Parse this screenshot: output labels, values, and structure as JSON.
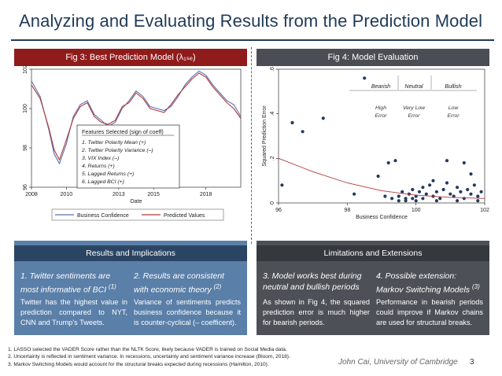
{
  "slide": {
    "title": "Analyzing and Evaluating Results from the Prediction Model",
    "author": "John Cai, University of Cambridge",
    "page_number": "3"
  },
  "fig3": {
    "title": "Fig 3: Best Prediction Model (λ₁ₛₑ)",
    "features_title": "Features Selected (sign of coeff)",
    "features": [
      "1. Twitter Polarity Mean (+)",
      "2. Twitter Polarity Variance (–)",
      "3. VIX Index (–)",
      "4. Returns (+)",
      "5. Lagged Returns (+)",
      "6. Lagged BCI (+)"
    ],
    "legend": [
      "Business Confidence",
      "Predicted Values"
    ]
  },
  "fig4": {
    "title": "Fig 4: Model Evaluation",
    "regimes": [
      {
        "name": "Bearish",
        "note": "High Error"
      },
      {
        "name": "Neutral",
        "note": "Very Low Error"
      },
      {
        "name": "Bullish",
        "note": "Low Error"
      }
    ]
  },
  "results": {
    "header": "Results and Implications",
    "items": [
      {
        "head": "1. Twitter sentiments are most informative of BCI",
        "ref": "(1)",
        "body": "Twitter has the highest value in prediction compared to NYT, CNN and Trump's Tweets."
      },
      {
        "head": "2. Results are consistent with economic theory",
        "ref": "(2)",
        "body": "Variance of sentiments predicts business confidence because it is counter-cyclical (– coefficent)."
      }
    ]
  },
  "limitations": {
    "header": "Limitations and Extensions",
    "items": [
      {
        "head": "3. Model works best during neutral and bullish periods",
        "ref": "",
        "body": "As shown in Fig 4, the squared prediction error is much higher for bearish periods."
      },
      {
        "head": "4. Possible extension: Markov Switching Models",
        "ref": "(3)",
        "body": "Performance in bearish periods could improve if Markov chains are used for structural breaks."
      }
    ]
  },
  "footnotes": [
    "1.  LASSO selected the VADER Score rather than the NLTK Score, likely because VADER is trained on Social Media data.",
    "2.  Uncertainty is reflected in sentiment variance. In recessions, uncertainty and sentiment variance increase (Bloom, 2018).",
    "3.  Markov Switching Models would account for the structural breaks expected during recessions (Hamilton, 2010)."
  ],
  "colors": {
    "business_confidence": "#5a6fb0",
    "predicted_values": "#b03a3a",
    "scatter_points": "#233a5e",
    "fit_line": "#b03a3a"
  },
  "chart_data": [
    {
      "type": "line",
      "x_ticks": [
        "2008",
        "2010",
        "2013",
        "2015",
        "2018"
      ],
      "xlabel": "Date",
      "ylabel": "",
      "ylim": [
        96,
        102
      ],
      "y_ticks": [
        "96",
        "98",
        "100",
        "102"
      ],
      "x": [
        2008.0,
        2008.5,
        2009.0,
        2009.3,
        2009.6,
        2010.0,
        2010.4,
        2010.8,
        2011.2,
        2011.6,
        2012.0,
        2012.4,
        2012.8,
        2013.2,
        2013.6,
        2014.0,
        2014.4,
        2014.8,
        2015.2,
        2015.6,
        2016.0,
        2016.4,
        2016.8,
        2017.2,
        2017.6,
        2018.0,
        2018.4,
        2018.8,
        2019.2,
        2019.6,
        2020.0
      ],
      "series": [
        {
          "name": "Business Confidence",
          "values": [
            101.4,
            100.6,
            98.9,
            97.7,
            97.2,
            98.2,
            99.6,
            100.2,
            100.4,
            99.7,
            99.4,
            99.1,
            99.3,
            100.0,
            100.4,
            100.9,
            100.6,
            100.1,
            100.0,
            99.9,
            100.1,
            100.6,
            101.2,
            101.6,
            101.9,
            101.7,
            101.2,
            100.8,
            100.4,
            100.2,
            99.6
          ]
        },
        {
          "name": "Predicted Values",
          "values": [
            101.2,
            100.5,
            99.0,
            97.9,
            97.4,
            98.4,
            99.5,
            100.1,
            100.3,
            99.6,
            99.3,
            99.2,
            99.4,
            100.1,
            100.3,
            100.8,
            100.5,
            100.0,
            99.9,
            99.8,
            100.2,
            100.7,
            101.1,
            101.5,
            101.8,
            101.6,
            101.1,
            100.7,
            100.3,
            100.0,
            99.5
          ]
        }
      ]
    },
    {
      "type": "scatter",
      "xlabel": "Business Confidence",
      "ylabel": "Squared Prediction Error",
      "xlim": [
        96,
        102
      ],
      "ylim": [
        0,
        0.6
      ],
      "x_ticks": [
        "96",
        "98",
        "100",
        "102"
      ],
      "y_ticks": [
        "0",
        ".2",
        ".4",
        ".6"
      ],
      "points": [
        [
          96.1,
          0.08
        ],
        [
          96.4,
          0.36
        ],
        [
          96.7,
          0.32
        ],
        [
          97.3,
          0.38
        ],
        [
          98.2,
          0.04
        ],
        [
          98.5,
          0.56
        ],
        [
          98.9,
          0.12
        ],
        [
          99.2,
          0.18
        ],
        [
          99.4,
          0.19
        ],
        [
          99.1,
          0.03
        ],
        [
          99.3,
          0.02
        ],
        [
          99.5,
          0.03
        ],
        [
          99.6,
          0.05
        ],
        [
          99.7,
          0.02
        ],
        [
          99.8,
          0.04
        ],
        [
          99.9,
          0.06
        ],
        [
          99.9,
          0.02
        ],
        [
          100.0,
          0.03
        ],
        [
          100.1,
          0.05
        ],
        [
          100.2,
          0.07
        ],
        [
          100.2,
          0.02
        ],
        [
          100.3,
          0.04
        ],
        [
          100.4,
          0.08
        ],
        [
          100.5,
          0.03
        ],
        [
          100.6,
          0.05
        ],
        [
          100.7,
          0.02
        ],
        [
          100.8,
          0.06
        ],
        [
          100.9,
          0.09
        ],
        [
          101.0,
          0.04
        ],
        [
          101.1,
          0.03
        ],
        [
          101.2,
          0.07
        ],
        [
          101.3,
          0.05
        ],
        [
          101.4,
          0.02
        ],
        [
          101.5,
          0.06
        ],
        [
          101.6,
          0.04
        ],
        [
          101.7,
          0.08
        ],
        [
          101.8,
          0.03
        ],
        [
          101.9,
          0.05
        ],
        [
          100.9,
          0.19
        ],
        [
          101.4,
          0.18
        ],
        [
          101.6,
          0.13
        ],
        [
          100.5,
          0.1
        ],
        [
          99.7,
          0.01
        ],
        [
          100.0,
          0.01
        ],
        [
          100.6,
          0.01
        ],
        [
          101.2,
          0.01
        ],
        [
          101.8,
          0.01
        ],
        [
          99.5,
          0.01
        ]
      ],
      "fit": {
        "x": [
          96,
          97,
          98,
          99,
          100,
          101,
          102
        ],
        "y": [
          0.2,
          0.14,
          0.09,
          0.055,
          0.035,
          0.025,
          0.02
        ]
      }
    }
  ]
}
